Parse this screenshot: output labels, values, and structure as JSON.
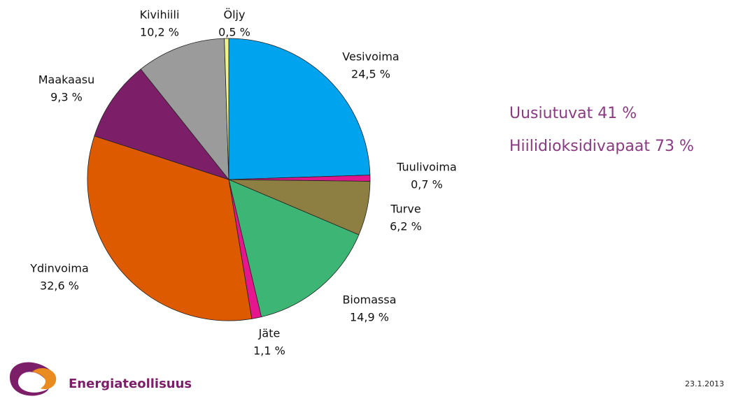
{
  "chart_data": {
    "type": "pie",
    "categories": [
      "Vesivoima",
      "Tuulivoima",
      "Turve",
      "Biomassa",
      "Jäte",
      "Ydinvoima",
      "Maakaasu",
      "Kivihiili",
      "Öljy"
    ],
    "values": [
      24.5,
      0.7,
      6.2,
      14.9,
      1.1,
      32.6,
      9.3,
      10.2,
      0.5
    ],
    "value_labels": [
      "24,5 %",
      "0,7 %",
      "6,2 %",
      "14,9 %",
      "1,1 %",
      "32,6 %",
      "9,3 %",
      "10,2 %",
      "0,5 %"
    ],
    "colors": [
      "#00a3ee",
      "#e0168c",
      "#8d7f42",
      "#3db575",
      "#e6178e",
      "#de5a00",
      "#7d1f68",
      "#9b9b9b",
      "#f4f28c"
    ],
    "annotations": [
      "Uusiutuvat 41 %",
      "Hiilidioksidivapaat 73 %"
    ]
  },
  "footer": {
    "logo_text": "Energiateollisuus",
    "date": "23.1.2013"
  }
}
